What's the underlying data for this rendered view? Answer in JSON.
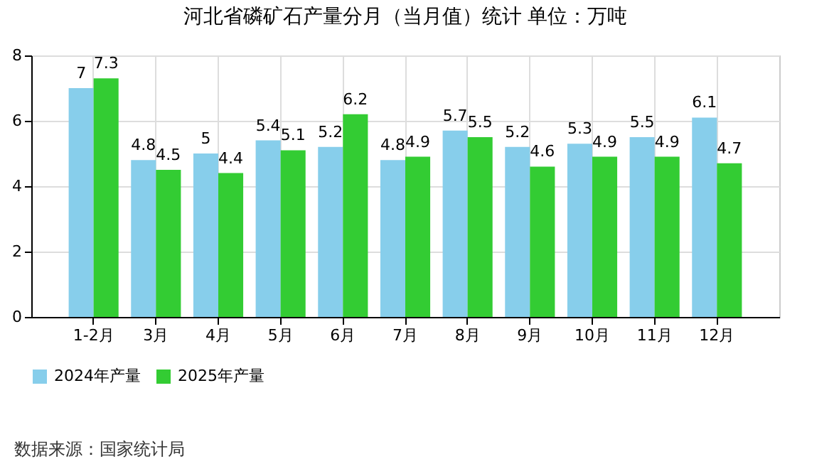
{
  "chart_data": {
    "type": "bar",
    "title": "河北省磷矿石产量分月（当月值）统计 单位：万吨",
    "categories": [
      "1-2月",
      "3月",
      "4月",
      "5月",
      "6月",
      "7月",
      "8月",
      "9月",
      "10月",
      "11月",
      "12月"
    ],
    "series": [
      {
        "name": "2024年产量",
        "color": "#87ceeb",
        "values": [
          7,
          4.8,
          5,
          5.4,
          5.2,
          4.8,
          5.7,
          5.2,
          5.3,
          5.5,
          6.1
        ]
      },
      {
        "name": "2025年产量",
        "color": "#33cc33",
        "values": [
          7.3,
          4.5,
          4.4,
          5.1,
          6.2,
          4.9,
          5.5,
          4.6,
          4.9,
          4.9,
          4.7
        ]
      }
    ],
    "ylim": [
      0,
      8
    ],
    "yticks": [
      0,
      2,
      4,
      6,
      8
    ],
    "grid": true,
    "legend": "bottom",
    "data_labels": true,
    "annotations": [
      "数据来源：国家统计局"
    ]
  }
}
